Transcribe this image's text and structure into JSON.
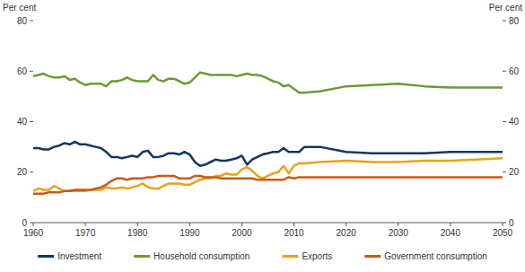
{
  "chart_data": {
    "type": "line",
    "y_label": "Per cent",
    "y2_label": "Per cent",
    "x": [
      1960,
      1961,
      1962,
      1963,
      1964,
      1965,
      1966,
      1967,
      1968,
      1969,
      1970,
      1971,
      1972,
      1973,
      1974,
      1975,
      1976,
      1977,
      1978,
      1979,
      1980,
      1981,
      1982,
      1983,
      1984,
      1985,
      1986,
      1987,
      1988,
      1989,
      1990,
      1991,
      1992,
      1993,
      1994,
      1995,
      1996,
      1997,
      1998,
      1999,
      2000,
      2001,
      2002,
      2003,
      2004,
      2005,
      2006,
      2007,
      2008,
      2009,
      2010,
      2011,
      2012,
      2015,
      2020,
      2025,
      2030,
      2035,
      2040,
      2045,
      2050
    ],
    "xlim": [
      1960,
      2050
    ],
    "xticks": [
      1960,
      1970,
      1980,
      1990,
      2000,
      2010,
      2020,
      2030,
      2040,
      2050
    ],
    "ylim": [
      0,
      80
    ],
    "yticks": [
      0,
      20,
      40,
      60,
      80
    ],
    "y2lim": [
      0,
      80
    ],
    "y2ticks": [
      0,
      20,
      40,
      60,
      80
    ],
    "grid": false,
    "legend": "bottom",
    "series": [
      {
        "name": "Investment",
        "color": "#13375f",
        "values": [
          29.5,
          29.5,
          29,
          29,
          30,
          30.5,
          31.5,
          31,
          32,
          31,
          31,
          30.5,
          30,
          29.5,
          28,
          26,
          26,
          25.5,
          26,
          26.5,
          26,
          28,
          28.5,
          26,
          26,
          26.5,
          27.5,
          27.5,
          27,
          28,
          27,
          24,
          22.5,
          23,
          24,
          25,
          24.5,
          24.5,
          25,
          25.5,
          26.5,
          23,
          25,
          26,
          27,
          27.5,
          28,
          28,
          29.5,
          28,
          28,
          28,
          30,
          30,
          28,
          27.5,
          27.5,
          27.5,
          28,
          28,
          28
        ]
      },
      {
        "name": "Household consumption",
        "color": "#6c9a34",
        "values": [
          58,
          58.5,
          59,
          58,
          57.5,
          57.5,
          58,
          56.5,
          57,
          55.5,
          54.5,
          55,
          55,
          55,
          54,
          56,
          56,
          56.5,
          57.5,
          56.5,
          56,
          56,
          56,
          58.5,
          56.5,
          56,
          57,
          57,
          56,
          55,
          55.5,
          57.5,
          59.5,
          59,
          58.5,
          58.5,
          58.5,
          58.5,
          58.5,
          58,
          58.5,
          59,
          58.5,
          58.5,
          58,
          57,
          56,
          55.5,
          54,
          54.5,
          53,
          51.5,
          51.5,
          52,
          54,
          54.5,
          55,
          54,
          53.5,
          53.5,
          53.5
        ]
      },
      {
        "name": "Exports",
        "color": "#e8a31a",
        "values": [
          12.5,
          13.5,
          13,
          13,
          14.5,
          13.5,
          12.5,
          12.5,
          12.5,
          12.5,
          12.5,
          13,
          13,
          13,
          14,
          13.5,
          13.5,
          14,
          13.5,
          14,
          14.5,
          15.5,
          14,
          13.5,
          13.5,
          14.5,
          15.5,
          15.5,
          15.5,
          15,
          15,
          16,
          17,
          17.5,
          17.5,
          18.5,
          18.5,
          19.5,
          19,
          19,
          21,
          22,
          20.5,
          18.5,
          17.5,
          18.5,
          19.5,
          20,
          22.5,
          19.5,
          22.5,
          23.5,
          23.5,
          24,
          24.5,
          24,
          24,
          24.5,
          24.5,
          25,
          25.5
        ]
      },
      {
        "name": "Government consumption",
        "color": "#c9581b",
        "values": [
          11.5,
          11.5,
          11.5,
          12,
          12,
          12,
          12.5,
          12.5,
          13,
          13,
          13,
          13,
          13.5,
          14,
          15,
          16.5,
          17.5,
          17.5,
          17,
          17.5,
          17.5,
          17.5,
          18,
          18,
          18.5,
          18.5,
          18.5,
          18.5,
          17.5,
          17.5,
          17.5,
          18.5,
          18.5,
          18,
          18,
          18,
          17.5,
          17.5,
          17.5,
          17.5,
          17.5,
          17.5,
          17.5,
          17,
          17,
          17,
          17,
          17,
          17,
          18,
          17.5,
          18,
          18,
          18,
          18,
          18,
          18,
          18,
          18,
          18,
          18
        ]
      }
    ]
  }
}
